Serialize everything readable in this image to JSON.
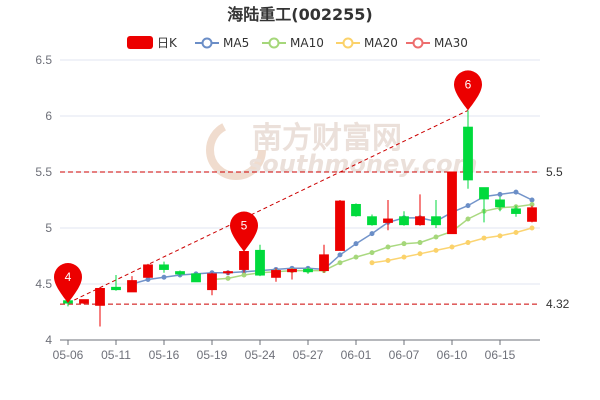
{
  "chart_data": {
    "type": "candlestick",
    "title": "海陆重工(002255)",
    "watermark": {
      "cn": "南方财富网",
      "en": "southmoney.com"
    },
    "legend": [
      "日K",
      "MA5",
      "MA10",
      "MA20",
      "MA30"
    ],
    "colors": {
      "up": "#ec0000",
      "down": "#00da3c",
      "ma5": "#6b8ec7",
      "ma10": "#a5d77a",
      "ma20": "#fbd26a",
      "ma30": "#ed6e6e",
      "ref_line": "#cc0000",
      "pin": "#ec0000"
    },
    "y_axis": {
      "min": 4,
      "max": 6.5,
      "ticks": [
        "4",
        "4.5",
        "5",
        "5.5",
        "6",
        "6.5"
      ]
    },
    "x_tick_labels": [
      {
        "i": 0,
        "label": "05-06"
      },
      {
        "i": 3,
        "label": "05-11"
      },
      {
        "i": 6,
        "label": "05-16"
      },
      {
        "i": 9,
        "label": "05-19"
      },
      {
        "i": 12,
        "label": "05-24"
      },
      {
        "i": 15,
        "label": "05-27"
      },
      {
        "i": 18,
        "label": "06-01"
      },
      {
        "i": 21,
        "label": "06-07"
      },
      {
        "i": 24,
        "label": "06-10"
      },
      {
        "i": 27,
        "label": "06-15"
      }
    ],
    "candles": [
      {
        "open": 4.35,
        "close": 4.33,
        "high": 4.35,
        "low": 4.3
      },
      {
        "open": 4.33,
        "close": 4.36,
        "high": 4.36,
        "low": 4.32
      },
      {
        "open": 4.31,
        "close": 4.46,
        "high": 4.47,
        "low": 4.12
      },
      {
        "open": 4.47,
        "close": 4.45,
        "high": 4.58,
        "low": 4.44
      },
      {
        "open": 4.43,
        "close": 4.53,
        "high": 4.57,
        "low": 4.43
      },
      {
        "open": 4.56,
        "close": 4.67,
        "high": 4.68,
        "low": 4.56
      },
      {
        "open": 4.67,
        "close": 4.63,
        "high": 4.7,
        "low": 4.6
      },
      {
        "open": 4.61,
        "close": 4.59,
        "high": 4.62,
        "low": 4.57
      },
      {
        "open": 4.59,
        "close": 4.52,
        "high": 4.6,
        "low": 4.52
      },
      {
        "open": 4.45,
        "close": 4.59,
        "high": 4.6,
        "low": 4.4
      },
      {
        "open": 4.6,
        "close": 4.61,
        "high": 4.62,
        "low": 4.58
      },
      {
        "open": 4.63,
        "close": 4.79,
        "high": 4.8,
        "low": 4.6
      },
      {
        "open": 4.8,
        "close": 4.58,
        "high": 4.85,
        "low": 4.57
      },
      {
        "open": 4.56,
        "close": 4.62,
        "high": 4.64,
        "low": 4.52
      },
      {
        "open": 4.61,
        "close": 4.63,
        "high": 4.64,
        "low": 4.54
      },
      {
        "open": 4.63,
        "close": 4.61,
        "high": 4.65,
        "low": 4.59
      },
      {
        "open": 4.62,
        "close": 4.76,
        "high": 4.85,
        "low": 4.6
      },
      {
        "open": 4.8,
        "close": 5.24,
        "high": 5.25,
        "low": 4.8
      },
      {
        "open": 5.21,
        "close": 5.11,
        "high": 5.22,
        "low": 5.1
      },
      {
        "open": 5.1,
        "close": 5.03,
        "high": 5.12,
        "low": 5.02
      },
      {
        "open": 5.05,
        "close": 5.08,
        "high": 5.25,
        "low": 4.98
      },
      {
        "open": 5.1,
        "close": 5.03,
        "high": 5.15,
        "low": 5.02
      },
      {
        "open": 5.03,
        "close": 5.1,
        "high": 5.3,
        "low": 5.02
      },
      {
        "open": 5.1,
        "close": 5.03,
        "high": 5.25,
        "low": 5.0
      },
      {
        "open": 4.95,
        "close": 5.5,
        "high": 5.5,
        "low": 4.95
      },
      {
        "open": 5.9,
        "close": 5.43,
        "high": 6.05,
        "low": 5.35
      },
      {
        "open": 5.36,
        "close": 5.26,
        "high": 5.36,
        "low": 5.05
      },
      {
        "open": 5.25,
        "close": 5.19,
        "high": 5.28,
        "low": 5.15
      },
      {
        "open": 5.17,
        "close": 5.13,
        "high": 5.2,
        "low": 5.1
      },
      {
        "open": 5.06,
        "close": 5.18,
        "high": 5.2,
        "low": 5.05
      }
    ],
    "ma5": [
      null,
      null,
      null,
      null,
      4.5,
      4.54,
      4.56,
      4.58,
      4.59,
      4.6,
      4.6,
      4.61,
      4.62,
      4.63,
      4.64,
      4.64,
      4.63,
      4.76,
      4.86,
      4.95,
      5.05,
      5.09,
      5.09,
      5.06,
      5.14,
      5.2,
      5.28,
      5.3,
      5.32,
      5.25
    ],
    "ma10": [
      null,
      null,
      null,
      null,
      null,
      null,
      null,
      null,
      null,
      4.54,
      4.55,
      4.58,
      4.6,
      4.61,
      4.62,
      4.62,
      4.62,
      4.69,
      4.74,
      4.78,
      4.83,
      4.86,
      4.87,
      4.92,
      4.97,
      5.08,
      5.15,
      5.18,
      5.19,
      5.21
    ],
    "ma20": [
      null,
      null,
      null,
      null,
      null,
      null,
      null,
      null,
      null,
      null,
      null,
      null,
      null,
      null,
      null,
      null,
      null,
      null,
      null,
      4.69,
      4.71,
      4.74,
      4.77,
      4.8,
      4.83,
      4.87,
      4.91,
      4.93,
      4.96,
      5.0
    ],
    "ma30": [],
    "reference_lines": [
      5.5,
      4.32
    ],
    "ref_labels": [
      "5.5",
      "4.32"
    ],
    "markers": [
      {
        "label": "4",
        "i": 0,
        "value": 4.33
      },
      {
        "label": "5",
        "i": 11,
        "value": 4.79
      },
      {
        "label": "6",
        "i": 25,
        "value": 6.05
      }
    ]
  }
}
